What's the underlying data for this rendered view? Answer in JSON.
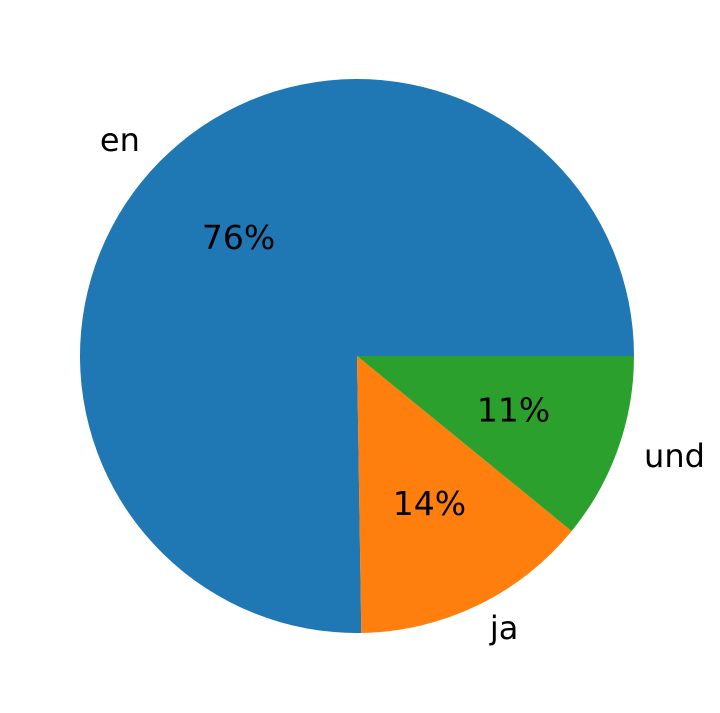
{
  "chart_data": {
    "type": "pie",
    "categories": [
      "en",
      "ja",
      "und"
    ],
    "values": [
      76,
      14,
      11
    ],
    "value_labels": [
      "76%",
      "14%",
      "11%"
    ],
    "colors": [
      "#1f77b4",
      "#ff7f0e",
      "#2ca02c"
    ]
  }
}
